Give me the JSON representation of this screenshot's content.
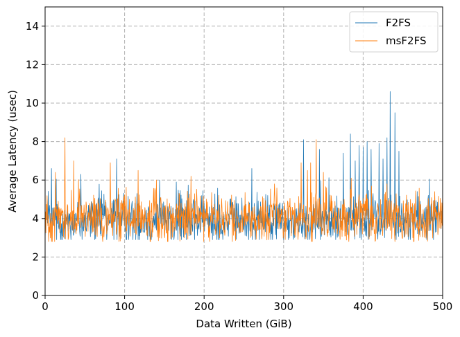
{
  "chart_data": {
    "type": "line",
    "xlabel": "Data Written (GiB)",
    "ylabel": "Average Latency (usec)",
    "xlim": [
      0,
      500
    ],
    "ylim": [
      0,
      15
    ],
    "x_ticks": [
      0,
      100,
      200,
      300,
      400,
      500
    ],
    "y_ticks": [
      0,
      2,
      4,
      6,
      8,
      10,
      12,
      14
    ],
    "grid": true,
    "grid_style": "dashed",
    "legend_position": "top-right",
    "sampling": "approximate profile; ~1 sample per 0.5 GiB, values estimated from gridlines",
    "series": [
      {
        "name": "F2FS",
        "color": "#1f77b4",
        "profile": {
          "x_range": [
            0,
            500
          ],
          "samples": 1000,
          "base_latency": 3.9,
          "spread": 1.2,
          "min_latency": 2.9
        },
        "peaks": [
          {
            "x": 8,
            "y": 6.6
          },
          {
            "x": 45,
            "y": 6.3
          },
          {
            "x": 90,
            "y": 7.1
          },
          {
            "x": 165,
            "y": 5.9
          },
          {
            "x": 260,
            "y": 6.6
          },
          {
            "x": 325,
            "y": 8.1
          },
          {
            "x": 345,
            "y": 7.6
          },
          {
            "x": 375,
            "y": 7.4
          },
          {
            "x": 384,
            "y": 8.4
          },
          {
            "x": 390,
            "y": 7.0
          },
          {
            "x": 395,
            "y": 7.8
          },
          {
            "x": 400,
            "y": 7.7
          },
          {
            "x": 405,
            "y": 8.0
          },
          {
            "x": 410,
            "y": 7.6
          },
          {
            "x": 420,
            "y": 7.9
          },
          {
            "x": 425,
            "y": 7.1
          },
          {
            "x": 430,
            "y": 8.2
          },
          {
            "x": 434,
            "y": 10.6
          },
          {
            "x": 440,
            "y": 9.5
          },
          {
            "x": 445,
            "y": 7.5
          }
        ]
      },
      {
        "name": "msF2FS",
        "color": "#ff7f0e",
        "profile": {
          "x_range": [
            0,
            500
          ],
          "samples": 1000,
          "base_latency": 4.0,
          "spread": 1.3,
          "min_latency": 2.8
        },
        "peaks": [
          {
            "x": 13,
            "y": 6.4
          },
          {
            "x": 25,
            "y": 8.2
          },
          {
            "x": 36,
            "y": 7.0
          },
          {
            "x": 82,
            "y": 6.9
          },
          {
            "x": 117,
            "y": 6.5
          },
          {
            "x": 140,
            "y": 6.0
          },
          {
            "x": 322,
            "y": 6.9
          },
          {
            "x": 330,
            "y": 6.5
          },
          {
            "x": 341,
            "y": 8.1
          },
          {
            "x": 350,
            "y": 6.4
          },
          {
            "x": 430,
            "y": 5.8
          },
          {
            "x": 490,
            "y": 5.4
          }
        ]
      }
    ]
  }
}
